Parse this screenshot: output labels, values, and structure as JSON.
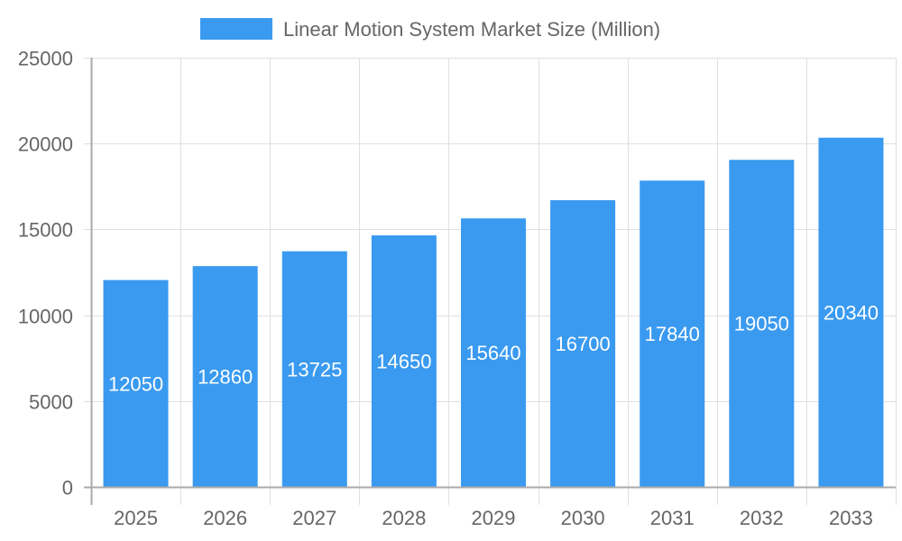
{
  "chart_data": {
    "type": "bar",
    "title": "",
    "xlabel": "",
    "ylabel": "",
    "categories": [
      "2025",
      "2026",
      "2027",
      "2028",
      "2029",
      "2030",
      "2031",
      "2032",
      "2033"
    ],
    "series": [
      {
        "name": "Linear Motion System Market Size (Million)",
        "values": [
          12050,
          12860,
          13725,
          14650,
          15640,
          16700,
          17840,
          19050,
          20340
        ],
        "color": "#3a9af0"
      }
    ],
    "ylim": [
      0,
      25000
    ],
    "yticks": [
      0,
      5000,
      10000,
      15000,
      20000,
      25000
    ],
    "grid": true,
    "legend_position": "top",
    "data_labels": true
  },
  "legend": {
    "label": "Linear Motion System Market Size (Million)",
    "color": "#3a9af0"
  },
  "colors": {
    "bar": "#3a9af0",
    "grid": "#e0e0e0",
    "axis": "#aaaaaa",
    "tick_text": "#666666",
    "label_text": "#ffffff"
  }
}
